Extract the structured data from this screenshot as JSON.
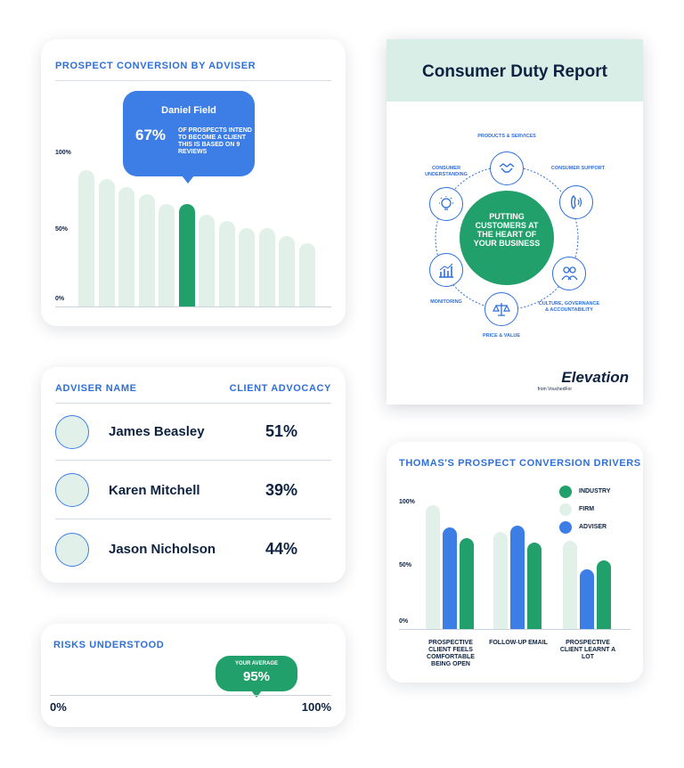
{
  "conversion_card": {
    "title": "PROSPECT CONVERSION BY ADVISER",
    "tooltip": {
      "name": "Daniel Field",
      "percent": "67%",
      "text": "OF PROSPECTS INTEND TO BECOME A CLIENT THIS IS BASED ON 9 REVIEWS"
    }
  },
  "report_card": {
    "title": "Consumer Duty Report",
    "hub_text": "PUTTING CUSTOMERS AT THE HEART OF YOUR BUSINESS",
    "nodes": [
      {
        "label": "PRODUCTS & SERVICES",
        "icon": "handshake-icon"
      },
      {
        "label": "CONSUMER SUPPORT",
        "icon": "phone-icon"
      },
      {
        "label": "CULTURE, GOVERNANCE & ACCOUNTABILITY",
        "icon": "people-icon"
      },
      {
        "label": "PRICE & VALUE",
        "icon": "scales-icon"
      },
      {
        "label": "MONITORING",
        "icon": "bar-chart-icon"
      },
      {
        "label": "CONSUMER UNDERSTANDING",
        "icon": "lightbulb-icon"
      }
    ],
    "brand": "Elevation",
    "brand_sub": "from VouchedFor"
  },
  "adviser_card": {
    "col_name": "ADVISER NAME",
    "col_value": "CLIENT ADVOCACY",
    "rows": [
      {
        "name": "James Beasley",
        "value": "51%"
      },
      {
        "name": "Karen Mitchell",
        "value": "39%"
      },
      {
        "name": "Jason Nicholson",
        "value": "44%"
      }
    ]
  },
  "risk_card": {
    "title": "RISKS UNDERSTOOD",
    "bubble_label": "YOUR AVERAGE",
    "bubble_value": "95%",
    "min": "0%",
    "max": "100%"
  },
  "drivers_card": {
    "title": "THOMAS'S PROSPECT CONVERSION DRIVERS"
  },
  "colors": {
    "blue": "#3c7ee6",
    "green": "#22a06b",
    "light_green": "#e1f1ea",
    "navy": "#0d2240"
  },
  "chart_data": [
    {
      "type": "bar",
      "title": "PROSPECT CONVERSION BY ADVISER",
      "y_tick_labels": [
        "100%",
        "50%",
        "0%"
      ],
      "ylim": [
        0,
        100
      ],
      "values": [
        89,
        83,
        78,
        73,
        67,
        67,
        60,
        56,
        51,
        51,
        46,
        41
      ],
      "highlight_index": 5,
      "highlight_label": "Daniel Field",
      "grid": false
    },
    {
      "type": "bar",
      "title": "THOMAS'S PROSPECT CONVERSION DRIVERS",
      "categories": [
        "PROSPECTIVE CLIENT FEELS COMFORTABLE BEING OPEN",
        "FOLLOW-UP EMAIL",
        "PROSPECTIVE CLIENT LEARNT A LOT"
      ],
      "y_tick_labels": [
        "100%",
        "50%",
        "0%"
      ],
      "ylim": [
        0,
        100
      ],
      "series": [
        {
          "name": "FIRM",
          "values": [
            98,
            77,
            70
          ],
          "color": "#e1f1ea"
        },
        {
          "name": "ADVISER",
          "values": [
            80,
            82,
            47
          ],
          "color": "#3c7ee6"
        },
        {
          "name": "INDUSTRY",
          "values": [
            72,
            68,
            54
          ],
          "color": "#22a06b"
        }
      ],
      "legend": [
        "INDUSTRY",
        "FIRM",
        "ADVISER"
      ],
      "legend_colors": [
        "#22a06b",
        "#e1f1ea",
        "#3c7ee6"
      ],
      "legend_position": "top-right",
      "grid": false
    },
    {
      "type": "bar",
      "title": "RISKS UNDERSTOOD",
      "values": [
        95
      ],
      "xlim": [
        0,
        100
      ]
    }
  ]
}
